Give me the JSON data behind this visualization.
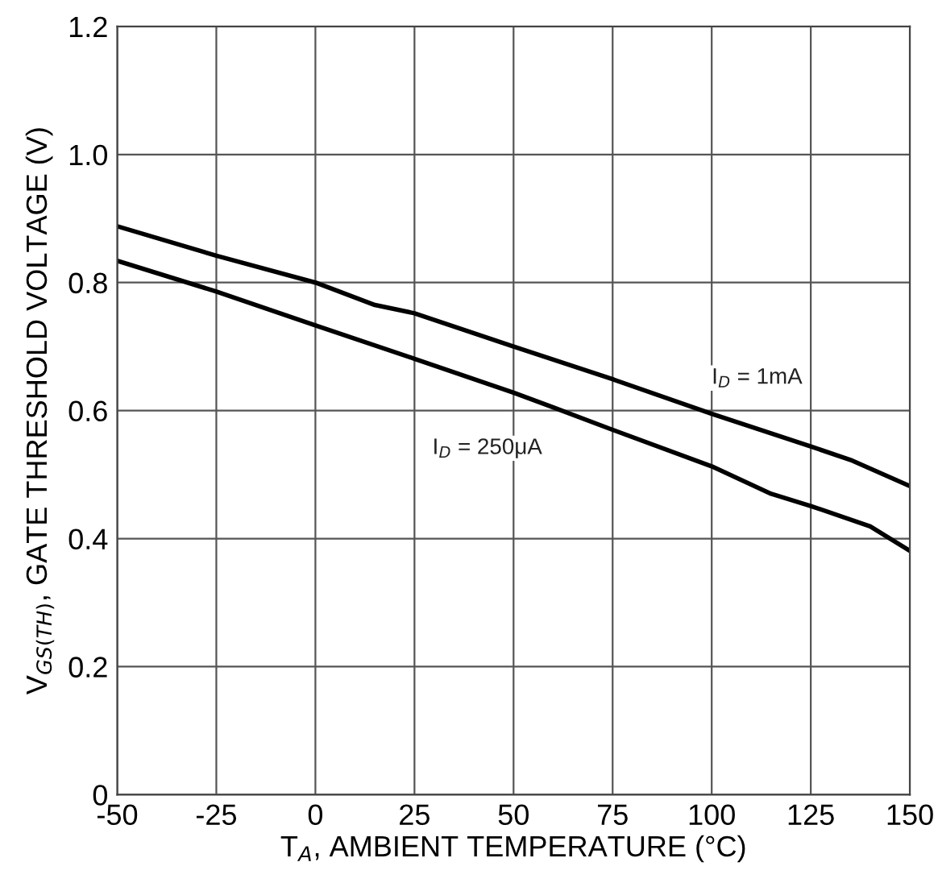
{
  "chart_data": {
    "type": "line",
    "xlabel": "T$_{A}$, AMBIENT TEMPERATURE (°C)",
    "ylabel": "V$_{GS(TH)}$, GATE THRESHOLD VOLTAGE (V)",
    "xlim": [
      -50,
      150
    ],
    "xticks": [
      -50,
      -25,
      0,
      25,
      50,
      75,
      100,
      125,
      150
    ],
    "ylim": [
      0,
      1.2
    ],
    "yticks": [
      0,
      {
        "value": 0.2,
        "label": "0.2"
      },
      {
        "value": 0.4,
        "label": "0.4"
      },
      {
        "value": 0.6,
        "label": "0.6"
      },
      {
        "value": 0.8,
        "label": "0.8"
      },
      {
        "value": 1.0,
        "label": "1.0"
      },
      {
        "value": 1.2,
        "label": "1.2"
      }
    ],
    "grid": true,
    "legend": false,
    "marker": "none",
    "line_style": "solid",
    "series": [
      {
        "name": "I$_{D}$ = 1mA",
        "color": "#000000",
        "x": [
          -50,
          -25,
          0,
          15,
          25,
          50,
          75,
          100,
          125,
          135,
          150
        ],
        "values": [
          0.888,
          0.842,
          0.8,
          0.765,
          0.752,
          0.7,
          0.649,
          0.595,
          0.544,
          0.523,
          0.482
        ]
      },
      {
        "name": "I$_{D}$ = 250μA",
        "color": "#000000",
        "x": [
          -50,
          -25,
          0,
          25,
          50,
          60,
          75,
          100,
          115,
          125,
          140,
          150
        ],
        "values": [
          0.834,
          0.786,
          0.733,
          0.681,
          0.628,
          0.605,
          0.57,
          0.513,
          0.47,
          0.451,
          0.419,
          0.381
        ]
      }
    ]
  }
}
